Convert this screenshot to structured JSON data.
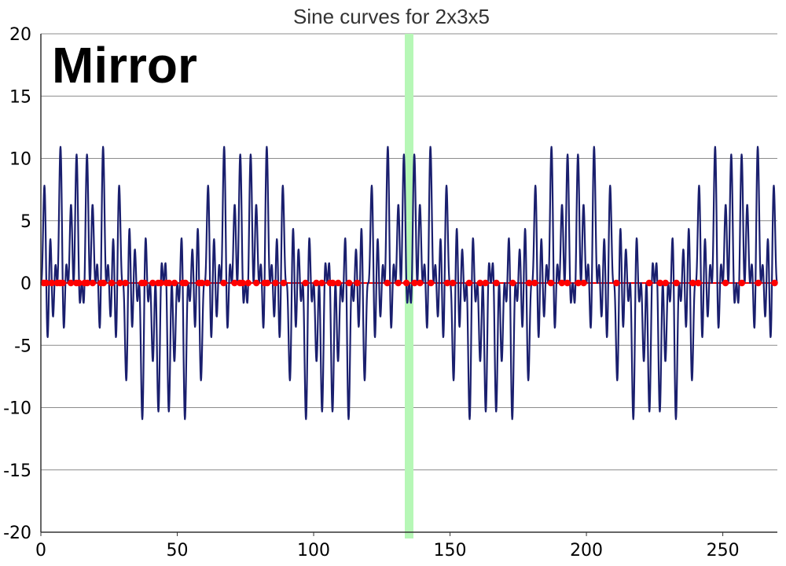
{
  "chart_data": {
    "type": "line",
    "title": "Sine curves for 2x3x5",
    "annotation": "Mirror",
    "xlim": [
      0,
      270
    ],
    "ylim": [
      -20,
      20
    ],
    "x_ticks": [
      0,
      50,
      100,
      150,
      200,
      250
    ],
    "y_ticks": [
      20,
      15,
      10,
      5,
      0,
      -5,
      -10,
      -15,
      -20
    ],
    "grid": "horizontal",
    "highlight_x": 135,
    "curve": {
      "type": "sum_of_sines",
      "periods": [
        2,
        3,
        5
      ],
      "sample_step": 0.1,
      "x_range": [
        0,
        270
      ],
      "amplitude": 12.3
    },
    "zero_points": [
      1,
      2,
      4,
      6,
      7,
      8,
      11,
      13,
      14,
      16,
      17,
      19,
      22,
      23,
      26,
      29,
      31,
      37,
      38,
      41,
      43,
      44,
      46,
      47,
      49,
      52,
      53,
      58,
      59,
      61,
      67,
      71,
      73,
      74,
      76,
      79,
      82,
      83,
      86,
      89,
      97,
      101,
      103,
      106,
      107,
      109,
      113,
      116,
      127,
      131,
      134,
      137,
      139,
      143,
      149,
      151,
      157,
      161,
      163,
      167,
      173,
      179,
      181,
      187,
      191,
      193,
      197,
      199,
      211,
      223,
      227,
      229,
      233,
      239,
      241,
      251,
      257,
      263,
      269
    ],
    "colors": {
      "curve": "#1a1f6e",
      "zero_line": "#ff0000",
      "points": "#ff0000",
      "highlight": "#b6f7b6",
      "grid": "#8c8c8c",
      "axis": "#333333"
    }
  }
}
